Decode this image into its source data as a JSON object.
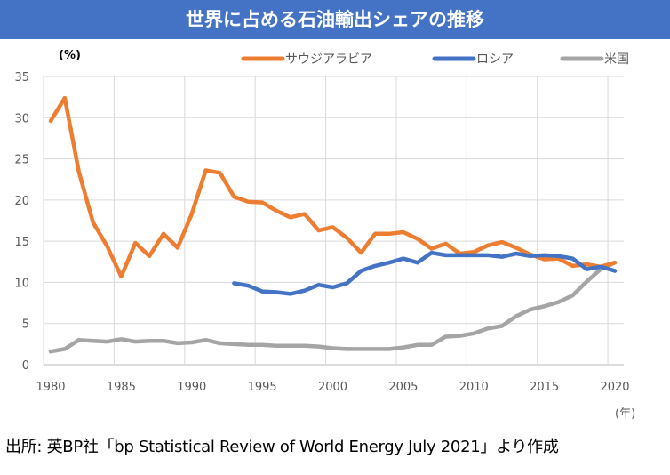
{
  "title": "世界に占める石油輸出シェアの推移",
  "source_note": "出所: 英BP社「bp Statistical Review of World Energy July 2021」より作成",
  "chart_data": {
    "type": "line",
    "title": "世界に占める石油輸出シェアの推移",
    "ylabel": "(%)",
    "xlabel": "(年)",
    "ylim": [
      0,
      35
    ],
    "yticks": [
      0,
      5,
      10,
      15,
      20,
      25,
      30,
      35
    ],
    "xticks": [
      1980,
      1985,
      1990,
      1995,
      2000,
      2005,
      2010,
      2015,
      2020
    ],
    "x_range": [
      1980,
      2020
    ],
    "grid": true,
    "legend_position": "top-right",
    "series": [
      {
        "name": "サウジアラビア",
        "color": "#ed7d31",
        "x": [
          1980,
          1981,
          1982,
          1983,
          1984,
          1985,
          1986,
          1987,
          1988,
          1989,
          1990,
          1991,
          1992,
          1993,
          1994,
          1995,
          1996,
          1997,
          1998,
          1999,
          2000,
          2001,
          2002,
          2003,
          2004,
          2005,
          2006,
          2007,
          2008,
          2009,
          2010,
          2011,
          2012,
          2013,
          2014,
          2015,
          2016,
          2017,
          2018,
          2019,
          2020
        ],
        "values": [
          29.6,
          32.4,
          23.4,
          17.3,
          14.4,
          10.7,
          14.8,
          13.2,
          15.9,
          14.2,
          18.3,
          23.6,
          23.3,
          20.4,
          19.8,
          19.7,
          18.7,
          17.9,
          18.3,
          16.3,
          16.7,
          15.4,
          13.6,
          15.9,
          15.9,
          16.1,
          15.3,
          14.1,
          14.7,
          13.5,
          13.7,
          14.5,
          14.9,
          14.2,
          13.4,
          12.8,
          12.9,
          12.0,
          12.2,
          11.9,
          12.4
        ]
      },
      {
        "name": "ロシア",
        "color": "#4472c4",
        "x": [
          1993,
          1994,
          1995,
          1996,
          1997,
          1998,
          1999,
          2000,
          2001,
          2002,
          2003,
          2004,
          2005,
          2006,
          2007,
          2008,
          2009,
          2010,
          2011,
          2012,
          2013,
          2014,
          2015,
          2016,
          2017,
          2018,
          2019,
          2020
        ],
        "values": [
          9.9,
          9.6,
          8.9,
          8.8,
          8.6,
          9.0,
          9.7,
          9.4,
          9.9,
          11.4,
          12.0,
          12.4,
          12.9,
          12.4,
          13.6,
          13.3,
          13.3,
          13.3,
          13.3,
          13.1,
          13.5,
          13.2,
          13.3,
          13.2,
          12.9,
          11.6,
          11.9,
          11.4
        ]
      },
      {
        "name": "米国",
        "color": "#a5a5a5",
        "x": [
          1980,
          1981,
          1982,
          1983,
          1984,
          1985,
          1986,
          1987,
          1988,
          1989,
          1990,
          1991,
          1992,
          1993,
          1994,
          1995,
          1996,
          1997,
          1998,
          1999,
          2000,
          2001,
          2002,
          2003,
          2004,
          2005,
          2006,
          2007,
          2008,
          2009,
          2010,
          2011,
          2012,
          2013,
          2014,
          2015,
          2016,
          2017,
          2018,
          2019,
          2020
        ],
        "values": [
          1.6,
          1.9,
          3.0,
          2.9,
          2.8,
          3.1,
          2.8,
          2.9,
          2.9,
          2.6,
          2.7,
          3.0,
          2.6,
          2.5,
          2.4,
          2.4,
          2.3,
          2.3,
          2.3,
          2.2,
          2.0,
          1.9,
          1.9,
          1.9,
          1.9,
          2.1,
          2.4,
          2.4,
          3.4,
          3.5,
          3.8,
          4.4,
          4.7,
          5.9,
          6.7,
          7.1,
          7.6,
          8.4,
          10.1,
          11.6,
          12.4
        ]
      }
    ]
  }
}
